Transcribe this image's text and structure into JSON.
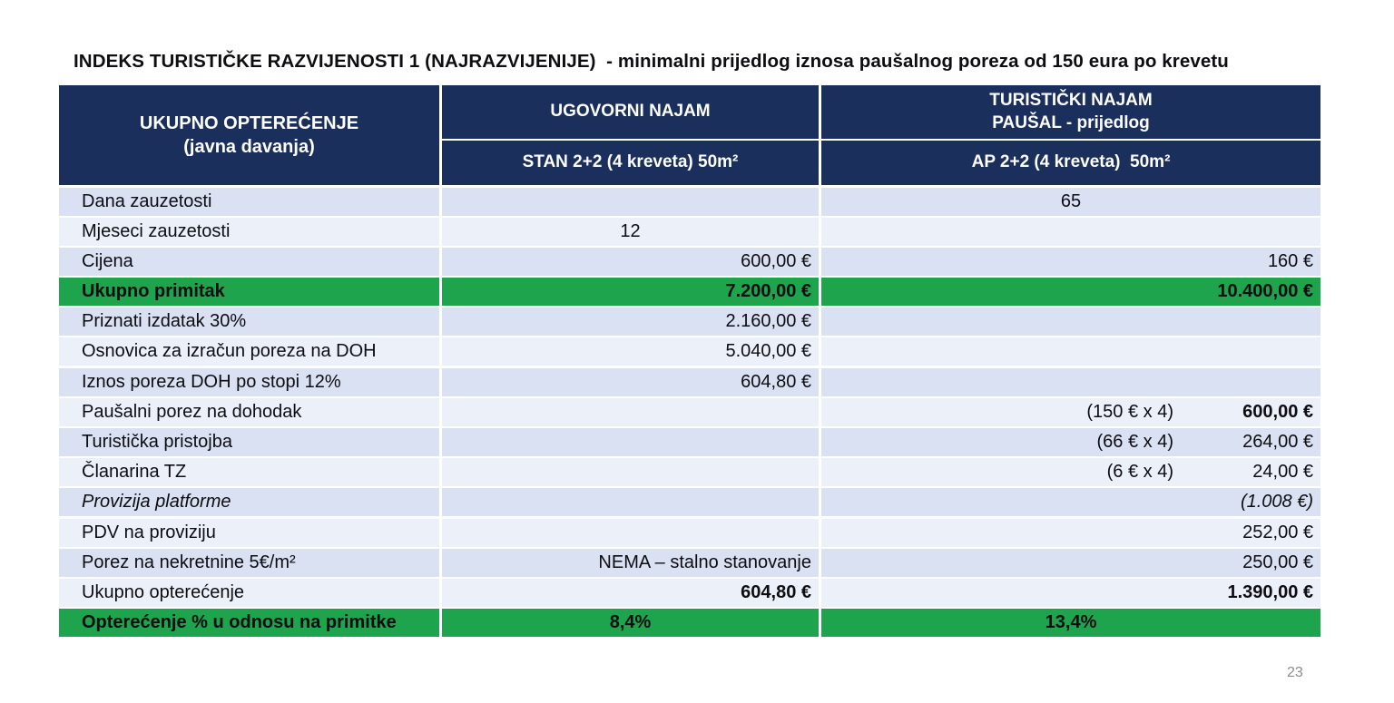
{
  "slide": {
    "title": "INDEKS TURISTIČKE RAZVIJENOSTI 1 (NAJRAZVIJENIJE)  - minimalni prijedlog iznosa paušalnog poreza od 150 eura po krevetu",
    "page_number": "23"
  },
  "colors": {
    "header_bg": "#1b2f5c",
    "band_dark": "#d9e1f2",
    "band_light": "#ecf1f9",
    "green": "#1ea44d",
    "body_text": "#0d0d12"
  },
  "table": {
    "header": {
      "col1_line1": "UKUPNO OPTEREĆENJE",
      "col1_line2": "(javna davanja)",
      "col2_group": "UGOVORNI NAJAM",
      "col2_sub": "STAN 2+2 (4 kreveta) 50m²",
      "col3_group_line1": "TURISTIČKI NAJAM",
      "col3_group_line2": "PAUŠAL - prijedlog",
      "col3_sub": "AP 2+2 (4 kreveta)  50m²"
    },
    "rows": [
      {
        "label": "Dana zauzetosti",
        "c2": "",
        "c3": "65",
        "c3_align": "center"
      },
      {
        "label": "Mjeseci zauzetosti",
        "c2": "12",
        "c2_align": "center",
        "c3": ""
      },
      {
        "label": "Cijena",
        "c2": "600,00 €",
        "c3": "160 €"
      },
      {
        "label": "Ukupno primitak",
        "highlight": true,
        "bold": true,
        "c2": "7.200,00 €",
        "c3": "10.400,00 €"
      },
      {
        "label": "Priznati izdatak 30%",
        "c2": "2.160,00 €",
        "c3": ""
      },
      {
        "label": "Osnovica za izračun poreza na DOH",
        "c2": "5.040,00 €",
        "c3": ""
      },
      {
        "label": "Iznos poreza DOH po stopi 12%",
        "c2": "604,80 €",
        "c3": ""
      },
      {
        "label": "Paušalni porez na dohodak",
        "c2": "",
        "c3_note": "(150 € x 4)",
        "c3": "600,00 €",
        "c3_bold": true
      },
      {
        "label": "Turistička pristojba",
        "c2": "",
        "c3_note": "(66 € x 4)",
        "c3": "264,00 €"
      },
      {
        "label": "Članarina TZ",
        "c2": "",
        "c3_note": "(6 € x 4)",
        "c3": "24,00 €"
      },
      {
        "label": "Provizija platforme",
        "italic": true,
        "c2": "",
        "c3": "(1.008 €)",
        "c3_italic": true
      },
      {
        "label": "PDV na proviziju",
        "c2": "",
        "c3": "252,00 €"
      },
      {
        "label": "Porez na nekretnine 5€/m²",
        "c2": "NEMA – stalno stanovanje",
        "c3": "250,00 €"
      },
      {
        "label": "Ukupno opterećenje",
        "c2": "604,80 €",
        "c2_bold": true,
        "c3": "1.390,00 €",
        "c3_bold": true
      },
      {
        "label": "Opterećenje % u odnosu na primitke",
        "highlight": true,
        "bold": true,
        "c2": "8,4%",
        "c2_align": "center",
        "c3": "13,4%",
        "c3_align": "center"
      }
    ]
  }
}
